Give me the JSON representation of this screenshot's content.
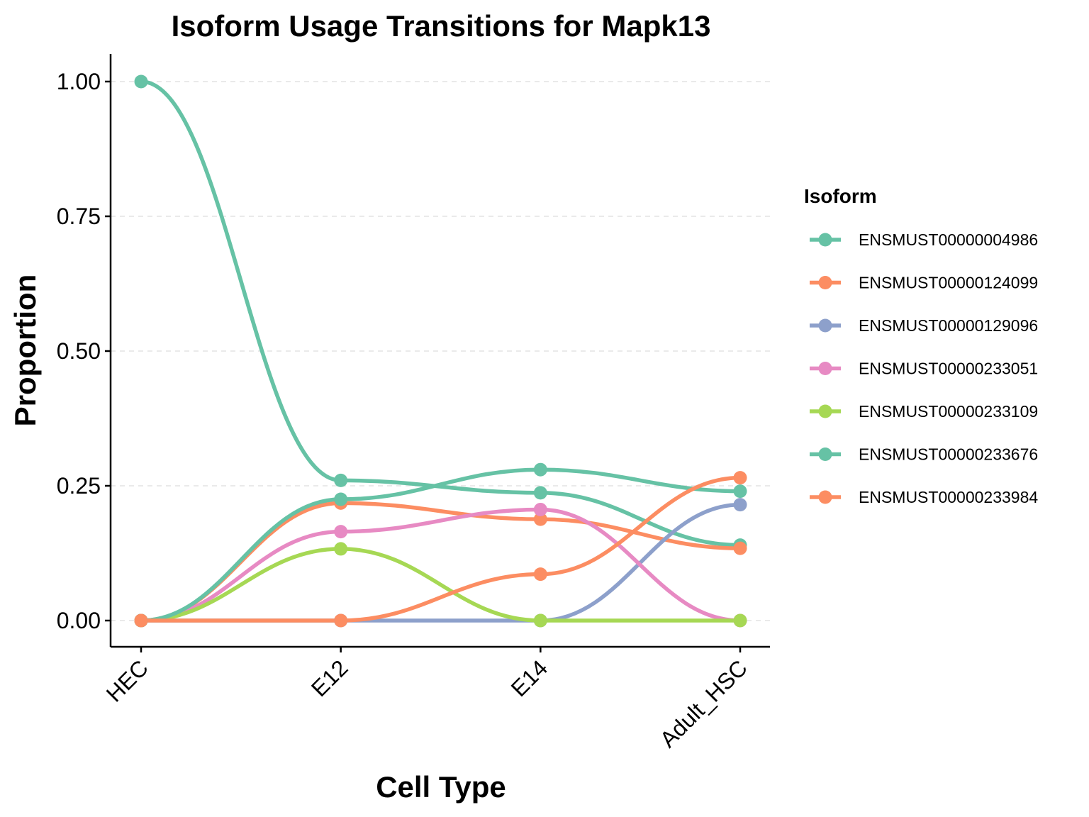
{
  "chart_data": {
    "type": "line",
    "title": "Isoform Usage Transitions for Mapk13",
    "xlabel": "Cell Type",
    "ylabel": "Proportion",
    "categories": [
      "HEC",
      "E12",
      "E14",
      "Adult_HSC"
    ],
    "ylim": [
      -0.05,
      1.05
    ],
    "yticks": [
      0.0,
      0.25,
      0.5,
      0.75,
      1.0
    ],
    "ytick_labels": [
      "0.00",
      "0.25",
      "0.50",
      "0.75",
      "1.00"
    ],
    "grid": "horizontal dashed",
    "legend": {
      "title": "Isoform",
      "placement": "right"
    },
    "series": [
      {
        "name": "ENSMUST00000004986",
        "color": "#66C2A5",
        "values": [
          1.0,
          0.26,
          0.237,
          0.14
        ]
      },
      {
        "name": "ENSMUST00000124099",
        "color": "#FC8D62",
        "values": [
          0.0,
          0.218,
          0.188,
          0.134
        ]
      },
      {
        "name": "ENSMUST00000129096",
        "color": "#8DA0CB",
        "values": [
          0.0,
          0.0,
          0.0,
          0.215
        ]
      },
      {
        "name": "ENSMUST00000233051",
        "color": "#E78AC3",
        "values": [
          0.0,
          0.165,
          0.206,
          0.0
        ]
      },
      {
        "name": "ENSMUST00000233109",
        "color": "#A6D854",
        "values": [
          0.0,
          0.133,
          0.0,
          0.0
        ]
      },
      {
        "name": "ENSMUST00000233676",
        "color": "#66C2A5",
        "values": [
          0.0,
          0.225,
          0.28,
          0.24
        ]
      },
      {
        "name": "ENSMUST00000233984",
        "color": "#FC8D62",
        "values": [
          0.0,
          0.0,
          0.086,
          0.265
        ]
      }
    ]
  }
}
